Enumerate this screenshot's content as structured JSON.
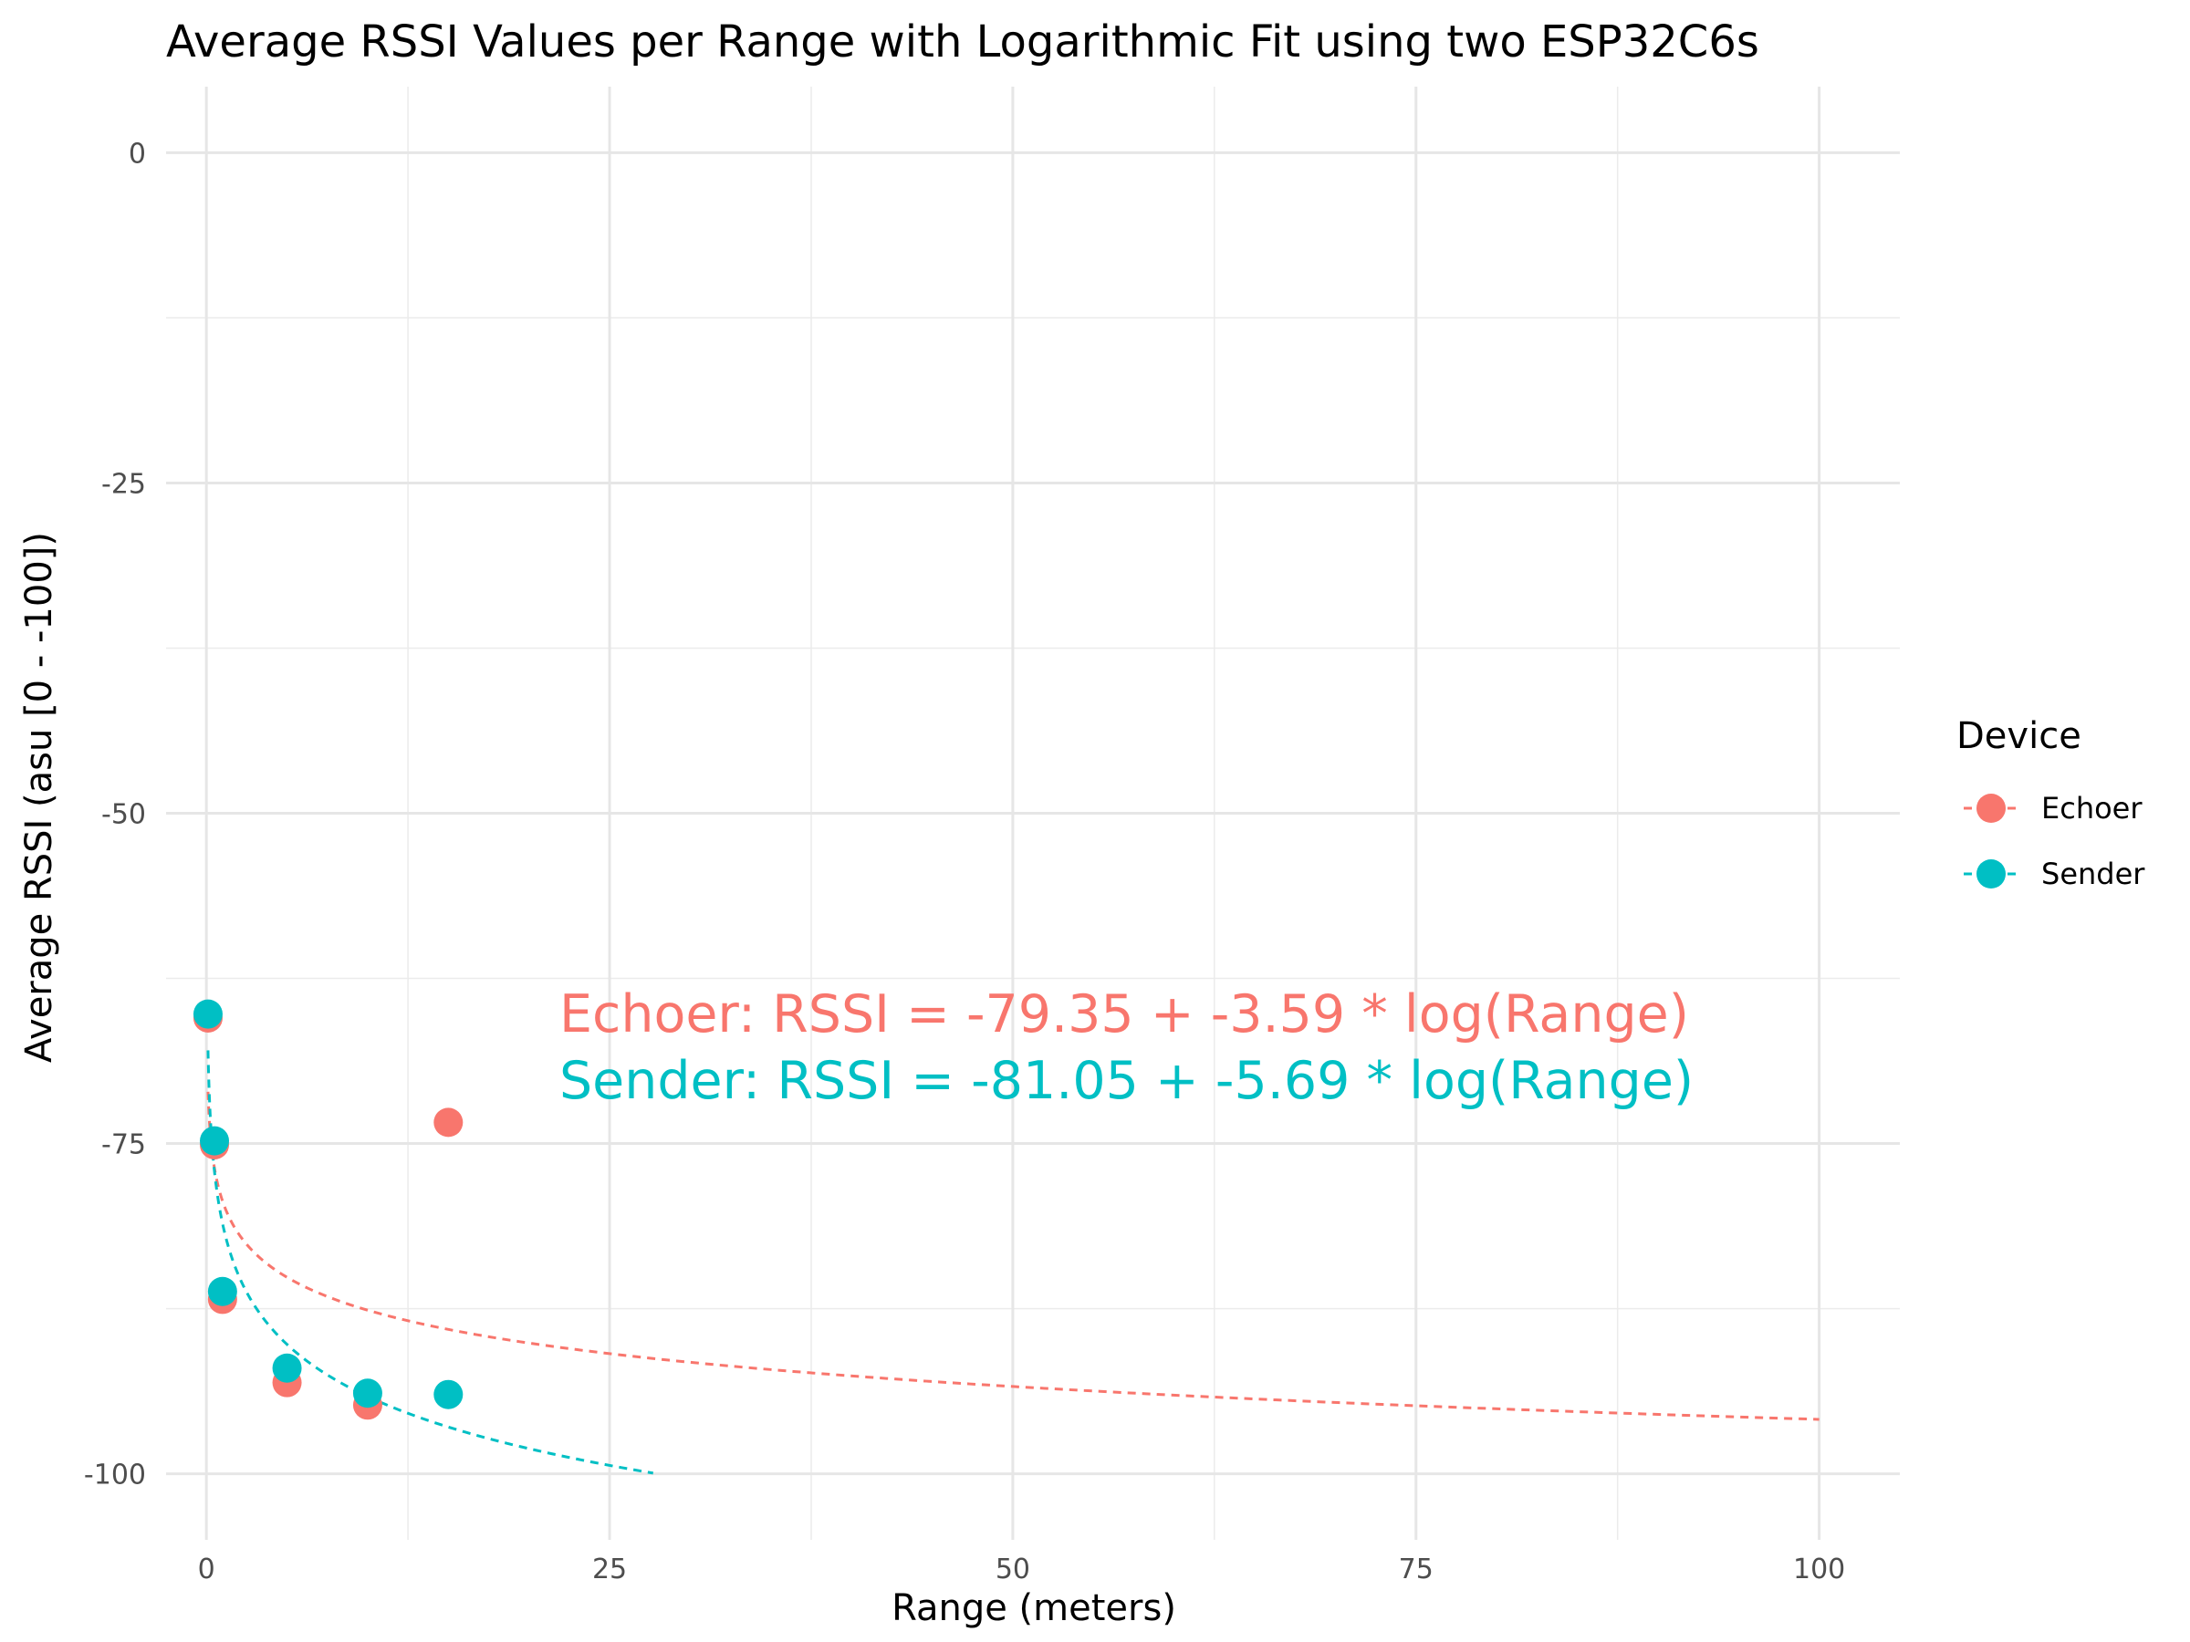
{
  "chart_data": {
    "type": "scatter",
    "title": "Average RSSI Values per Range with Logarithmic Fit using two ESP32C6s",
    "xlabel": "Range (meters)",
    "ylabel": "Average RSSI (asu [0 - -100])",
    "xlim": [
      -2.5,
      105
    ],
    "ylim": [
      -105,
      5
    ],
    "x_ticks": [
      0,
      25,
      50,
      75,
      100
    ],
    "x_tick_labels": [
      "0",
      "25",
      "50",
      "75",
      "100"
    ],
    "y_ticks": [
      0,
      -25,
      -50,
      -75,
      -100
    ],
    "y_tick_labels": [
      "0",
      "-25",
      "-50",
      "-75",
      "-100"
    ],
    "grid": true,
    "legend": {
      "title": "Device",
      "position": "right",
      "entries": [
        "Echoer",
        "Sender"
      ]
    },
    "series": [
      {
        "name": "Echoer",
        "color": "#F8766D",
        "points": [
          {
            "x": 0.1,
            "y": -65.5
          },
          {
            "x": 0.5,
            "y": -75.1
          },
          {
            "x": 1,
            "y": -86.8
          },
          {
            "x": 5,
            "y": -93.1
          },
          {
            "x": 10,
            "y": -94.8
          },
          {
            "x": 15,
            "y": -73.4
          }
        ],
        "fit": {
          "intercept": -79.35,
          "slope": -3.59,
          "x_range": [
            0.1,
            100
          ]
        }
      },
      {
        "name": "Sender",
        "color": "#00BFC4",
        "points": [
          {
            "x": 0.1,
            "y": -65.2
          },
          {
            "x": 0.5,
            "y": -74.8
          },
          {
            "x": 1,
            "y": -86.2
          },
          {
            "x": 5,
            "y": -92.0
          },
          {
            "x": 10,
            "y": -93.9
          },
          {
            "x": 15,
            "y": -94.0
          }
        ],
        "fit": {
          "intercept": -81.05,
          "slope": -5.69,
          "x_range": [
            0.1,
            27.7
          ]
        }
      }
    ],
    "annotations": [
      {
        "text": "Echoer: RSSI = -79.35 + -3.59 * log(Range)",
        "color": "#F8766D"
      },
      {
        "text": "Sender: RSSI = -81.05 + -5.69 * log(Range)",
        "color": "#00BFC4"
      }
    ]
  }
}
